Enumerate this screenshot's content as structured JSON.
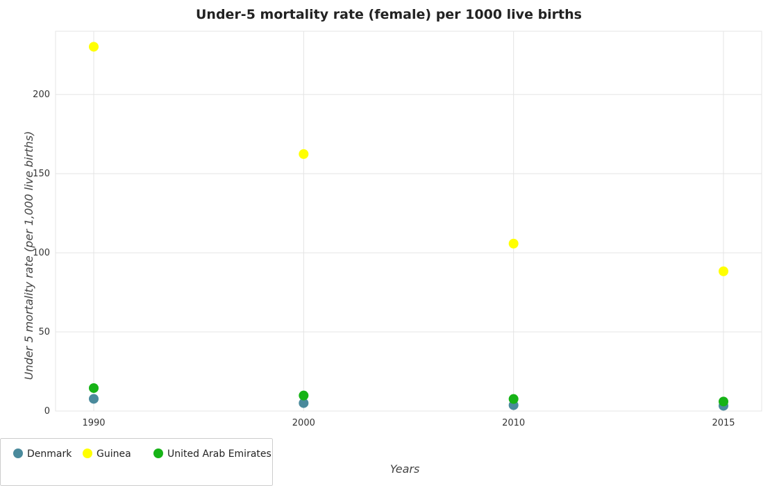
{
  "chart_data": {
    "type": "scatter",
    "title": "Under-5 mortality rate (female) per 1000 live births",
    "xlabel": "Years",
    "ylabel": "Under 5 mortality rate (per 1,000 live births)",
    "categories": [
      "1990",
      "2000",
      "2010",
      "2015"
    ],
    "ylim": [
      0,
      240
    ],
    "yticks": [
      "0",
      "50",
      "100",
      "150",
      "200"
    ],
    "grid": true,
    "legend_position": "bottom-left",
    "series": [
      {
        "name": "Denmark",
        "color": "#4a8a9c",
        "values": [
          7.7,
          5.0,
          3.7,
          3.3
        ]
      },
      {
        "name": "Guinea",
        "color": "#ffff00",
        "values": [
          230.2,
          162.4,
          105.8,
          88.3
        ]
      },
      {
        "name": "United Arab Emirates",
        "color": "#16b316",
        "values": [
          14.5,
          9.8,
          7.6,
          6.0
        ]
      }
    ]
  }
}
